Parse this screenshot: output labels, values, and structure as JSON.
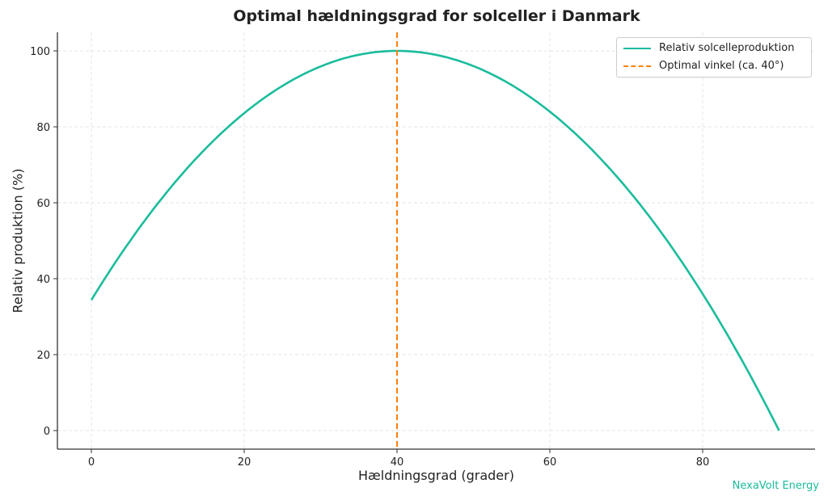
{
  "title": "Optimal hældningsgrad for solceller i Danmark",
  "watermark": "NexaVolt Energy",
  "colors": {
    "curve": "#1abc9c",
    "optimal_line": "#ff7f0e"
  },
  "chart_data": {
    "type": "line",
    "title": "Optimal hældningsgrad for solceller i Danmark",
    "xlabel": "Hældningsgrad (grader)",
    "ylabel": "Relativ produktion (%)",
    "xlim": [
      -4.5,
      94.5
    ],
    "ylim": [
      -5,
      105
    ],
    "xticks": [
      0,
      20,
      40,
      60,
      80
    ],
    "yticks": [
      0,
      20,
      40,
      60,
      80,
      100
    ],
    "grid": true,
    "legend_position": "upper right",
    "legend": [
      "Relativ solcelleproduktion",
      "Optimal vinkel (ca. 40°)"
    ],
    "series": [
      {
        "name": "Relativ solcelleproduktion",
        "x": [
          0,
          5,
          10,
          15,
          20,
          25,
          30,
          35,
          40,
          45,
          50,
          55,
          60,
          65,
          70,
          75,
          80,
          85,
          90
        ],
        "y": [
          34.5,
          51,
          64,
          75,
          84,
          91,
          96,
          99,
          100,
          99,
          96,
          91,
          84,
          75,
          64,
          51,
          36,
          19,
          0
        ]
      }
    ],
    "vlines": [
      {
        "name": "Optimal vinkel (ca. 40°)",
        "x": 40,
        "style": "dashed"
      }
    ]
  }
}
